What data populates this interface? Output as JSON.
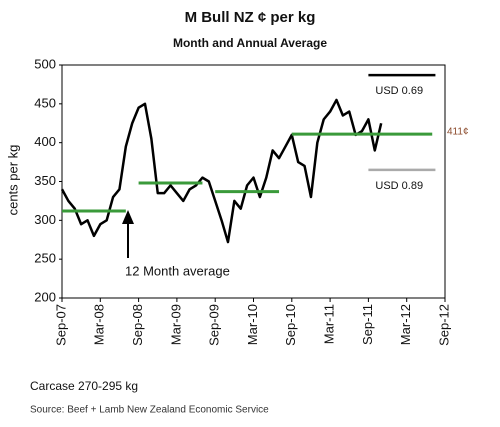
{
  "chart_data": {
    "type": "line",
    "title": "M Bull NZ ¢ per kg",
    "subtitle": "Month and Annual Average",
    "y_label": "cents per kg",
    "categories": [
      "Sep-07",
      null,
      null,
      null,
      null,
      null,
      "Mar-08",
      null,
      null,
      null,
      null,
      null,
      "Sep-08",
      null,
      null,
      null,
      null,
      null,
      "Mar-09",
      null,
      null,
      null,
      null,
      null,
      "Sep-09",
      null,
      null,
      null,
      null,
      null,
      "Mar-10",
      null,
      null,
      null,
      null,
      null,
      "Sep-10",
      null,
      null,
      null,
      null,
      null,
      "Mar-11",
      null,
      null,
      null,
      null,
      null,
      "Sep-11",
      null,
      null,
      null,
      null,
      null,
      "Mar-12",
      null,
      null,
      null,
      null,
      null,
      "Sep-12"
    ],
    "series": [
      {
        "color": "#000000",
        "values": [
          340,
          325,
          315,
          295,
          300,
          280,
          295,
          300,
          330,
          340,
          395,
          425,
          445,
          450,
          405,
          335,
          335,
          345,
          335,
          325,
          340,
          345,
          355,
          350,
          325,
          300,
          272,
          325,
          315,
          345,
          355,
          330,
          355,
          390,
          380,
          395,
          410,
          375,
          370,
          330,
          400,
          430,
          440,
          455,
          435,
          440,
          410,
          415,
          430,
          390,
          425,
          null,
          null,
          null,
          null,
          null,
          null,
          null,
          null,
          null,
          null
        ]
      },
      {
        "color": "#3a9a3a",
        "values": [
          312,
          312,
          312,
          312,
          312,
          312,
          312,
          312,
          312,
          312,
          312,
          null,
          348,
          348,
          348,
          348,
          348,
          348,
          348,
          348,
          348,
          348,
          348,
          null,
          337,
          337,
          337,
          337,
          337,
          337,
          337,
          337,
          337,
          337,
          337,
          null,
          411,
          411,
          411,
          411,
          411,
          411,
          411,
          411,
          411,
          411,
          411,
          411,
          411,
          411,
          411,
          411,
          411,
          411,
          411,
          411,
          411,
          411,
          411,
          null,
          null
        ]
      }
    ],
    "reference_lines": [
      {
        "label": "USD 0.69",
        "value": 487,
        "color": "#000000"
      },
      {
        "label": "USD 0.89",
        "value": 365,
        "color": "#aaaaaa"
      }
    ],
    "annotations": [
      "411¢",
      "12 Month average"
    ],
    "ylim": [
      200,
      500
    ],
    "yticks": [
      200,
      250,
      300,
      350,
      400,
      450,
      500
    ],
    "grid": false,
    "footer": "Carcase 270-295 kg",
    "source": "Source: Beef + Lamb New Zealand Economic Service"
  }
}
